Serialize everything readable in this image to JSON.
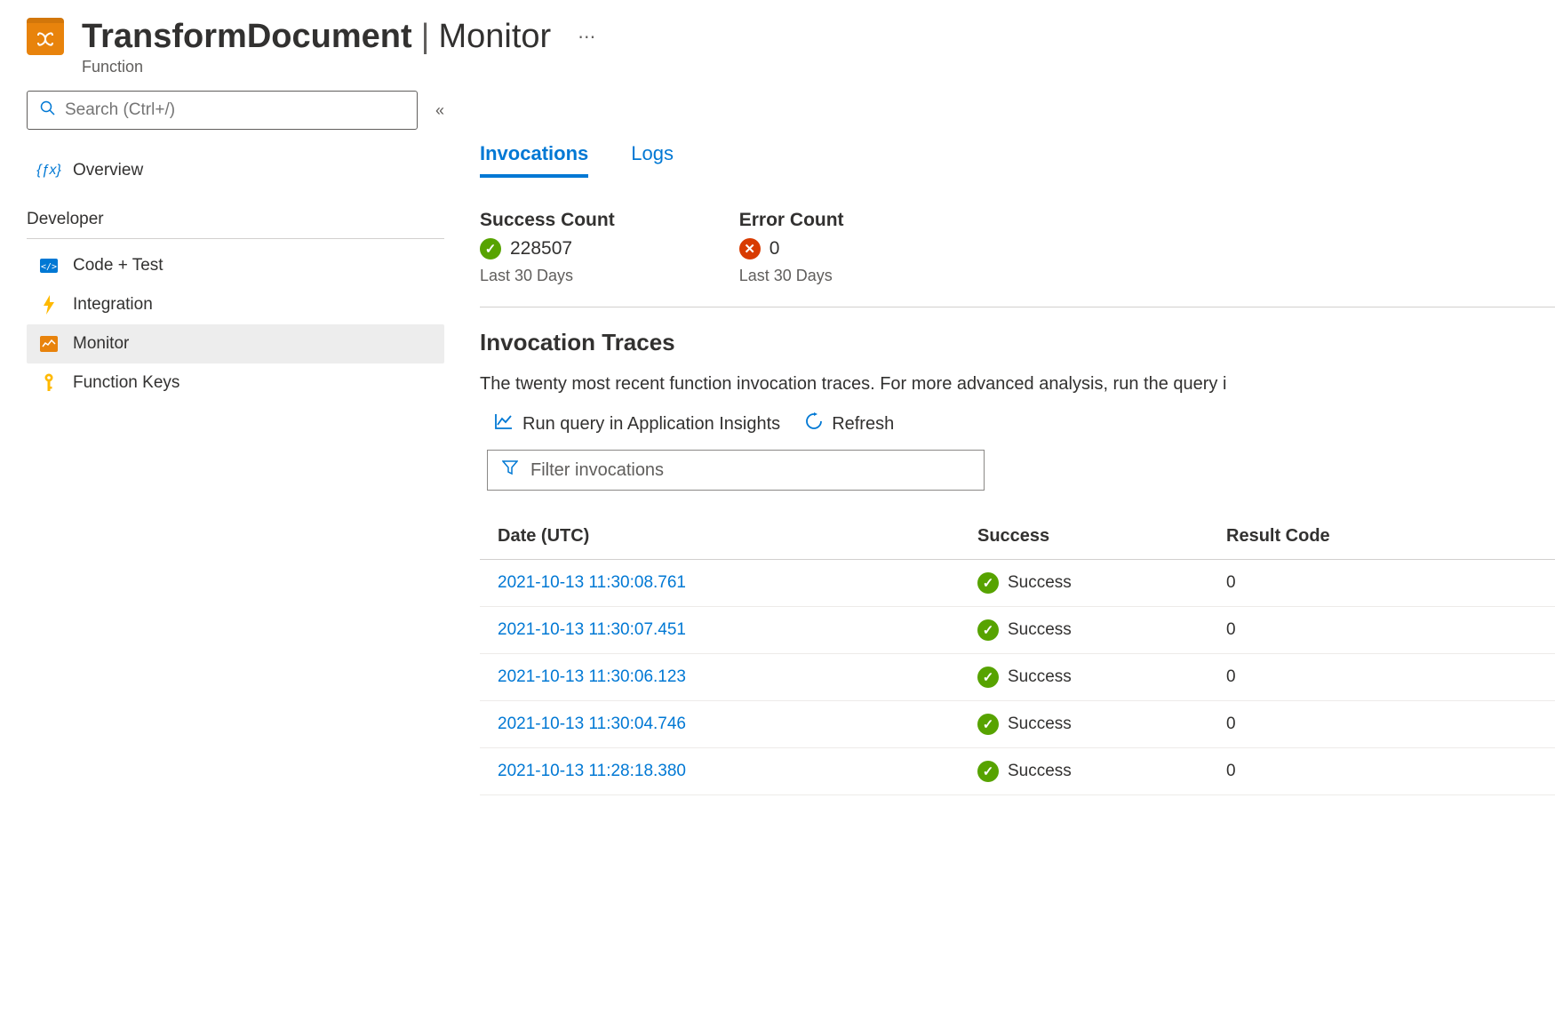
{
  "header": {
    "title_main": "TransformDocument",
    "title_separator": "|",
    "title_sub": "Monitor",
    "subtitle": "Function"
  },
  "sidebar": {
    "search_placeholder": "Search (Ctrl+/)",
    "overview": "Overview",
    "section_developer": "Developer",
    "items": [
      {
        "label": "Code + Test"
      },
      {
        "label": "Integration"
      },
      {
        "label": "Monitor"
      },
      {
        "label": "Function Keys"
      }
    ]
  },
  "tabs": {
    "invocations": "Invocations",
    "logs": "Logs"
  },
  "stats": {
    "success_label": "Success Count",
    "success_value": "228507",
    "success_period": "Last 30 Days",
    "error_label": "Error Count",
    "error_value": "0",
    "error_period": "Last 30 Days"
  },
  "traces": {
    "title": "Invocation Traces",
    "description": "The twenty most recent function invocation traces. For more advanced analysis, run the query i",
    "run_query": "Run query in Application Insights",
    "refresh": "Refresh",
    "filter_placeholder": "Filter invocations",
    "columns": {
      "date": "Date (UTC)",
      "success": "Success",
      "result": "Result Code"
    },
    "success_text": "Success",
    "rows": [
      {
        "date": "2021-10-13 11:30:08.761",
        "result": "0"
      },
      {
        "date": "2021-10-13 11:30:07.451",
        "result": "0"
      },
      {
        "date": "2021-10-13 11:30:06.123",
        "result": "0"
      },
      {
        "date": "2021-10-13 11:30:04.746",
        "result": "0"
      },
      {
        "date": "2021-10-13 11:28:18.380",
        "result": "0"
      }
    ]
  },
  "colors": {
    "primary_blue": "#0078d4",
    "orange": "#e8830c",
    "success_green": "#57a300",
    "error_red": "#d83b01"
  }
}
